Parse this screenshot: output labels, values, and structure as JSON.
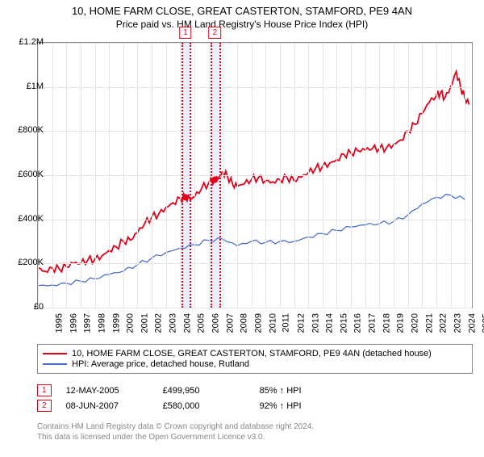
{
  "title": {
    "line1": "10, HOME FARM CLOSE, GREAT CASTERTON, STAMFORD, PE9 4AN",
    "line2": "Price paid vs. HM Land Registry's House Price Index (HPI)"
  },
  "chart": {
    "type": "line",
    "background_color": "#ffffff",
    "grid_color": "#e5e5e5",
    "border_color": "#888888",
    "y": {
      "min": 0,
      "max": 1200000,
      "ticks": [
        0,
        200000,
        400000,
        600000,
        800000,
        1000000,
        1200000
      ],
      "labels": [
        "£0",
        "£200K",
        "£400K",
        "£600K",
        "£800K",
        "£1M",
        "£1.2M"
      ]
    },
    "x": {
      "min": 1995,
      "max": 2025.5,
      "ticks": [
        1995,
        1996,
        1997,
        1998,
        1999,
        2000,
        2001,
        2002,
        2003,
        2004,
        2005,
        2006,
        2007,
        2008,
        2009,
        2010,
        2011,
        2012,
        2013,
        2014,
        2015,
        2016,
        2017,
        2018,
        2019,
        2020,
        2021,
        2022,
        2023,
        2024,
        2025
      ],
      "labels": [
        "1995",
        "1996",
        "1997",
        "1998",
        "1999",
        "2000",
        "2001",
        "2002",
        "2003",
        "2004",
        "2005",
        "2006",
        "2007",
        "2008",
        "2009",
        "2010",
        "2011",
        "2012",
        "2013",
        "2014",
        "2015",
        "2016",
        "2017",
        "2018",
        "2019",
        "2020",
        "2021",
        "2022",
        "2023",
        "2024",
        "2025"
      ]
    },
    "markers": [
      {
        "label": "1",
        "x": 2005.37,
        "y": 499950,
        "band_width_years": 0.6
      },
      {
        "label": "2",
        "x": 2007.44,
        "y": 580000,
        "band_width_years": 0.6
      }
    ],
    "marker_color": "#e2001a",
    "marker_band_color": "#e8effa",
    "series": [
      {
        "name": "10, HOME FARM CLOSE, GREAT CASTERTON, STAMFORD, PE9 4AN (detached house)",
        "color": "#e2001a",
        "line_width": 1.8,
        "data": [
          [
            1995,
            180000
          ],
          [
            1995.5,
            165000
          ],
          [
            1996,
            180000
          ],
          [
            1996.5,
            175000
          ],
          [
            1997,
            185000
          ],
          [
            1997.5,
            200000
          ],
          [
            1998,
            200000
          ],
          [
            1998.5,
            215000
          ],
          [
            1999,
            220000
          ],
          [
            1999.5,
            235000
          ],
          [
            2000,
            260000
          ],
          [
            2000.5,
            275000
          ],
          [
            2001,
            300000
          ],
          [
            2001.5,
            305000
          ],
          [
            2002,
            340000
          ],
          [
            2002.5,
            380000
          ],
          [
            2003,
            410000
          ],
          [
            2003.5,
            425000
          ],
          [
            2004,
            455000
          ],
          [
            2004.5,
            475000
          ],
          [
            2005,
            495000
          ],
          [
            2005.37,
            499950
          ],
          [
            2005.7,
            490000
          ],
          [
            2006,
            500000
          ],
          [
            2006.5,
            540000
          ],
          [
            2007,
            565000
          ],
          [
            2007.44,
            580000
          ],
          [
            2007.8,
            600000
          ],
          [
            2008,
            615000
          ],
          [
            2008.3,
            600000
          ],
          [
            2008.7,
            555000
          ],
          [
            2009,
            550000
          ],
          [
            2009.5,
            560000
          ],
          [
            2010,
            580000
          ],
          [
            2010.5,
            590000
          ],
          [
            2011,
            575000
          ],
          [
            2011.5,
            570000
          ],
          [
            2012,
            580000
          ],
          [
            2012.5,
            590000
          ],
          [
            2013,
            575000
          ],
          [
            2013.5,
            590000
          ],
          [
            2014,
            610000
          ],
          [
            2014.5,
            630000
          ],
          [
            2015,
            640000
          ],
          [
            2015.5,
            655000
          ],
          [
            2016,
            670000
          ],
          [
            2016.5,
            695000
          ],
          [
            2017,
            700000
          ],
          [
            2017.5,
            710000
          ],
          [
            2018,
            715000
          ],
          [
            2018.5,
            720000
          ],
          [
            2019,
            720000
          ],
          [
            2019.5,
            725000
          ],
          [
            2020,
            740000
          ],
          [
            2020.5,
            760000
          ],
          [
            2021,
            800000
          ],
          [
            2021.5,
            830000
          ],
          [
            2022,
            880000
          ],
          [
            2022.5,
            930000
          ],
          [
            2023,
            960000
          ],
          [
            2023.3,
            975000
          ],
          [
            2023.6,
            950000
          ],
          [
            2024,
            1000000
          ],
          [
            2024.4,
            1070000
          ],
          [
            2024.7,
            1000000
          ],
          [
            2025,
            950000
          ],
          [
            2025.3,
            920000
          ]
        ]
      },
      {
        "name": "HPI: Average price, detached house, Rutland",
        "color": "#4169c8",
        "line_width": 1.2,
        "data": [
          [
            1995,
            100000
          ],
          [
            1996,
            102000
          ],
          [
            1997,
            110000
          ],
          [
            1998,
            120000
          ],
          [
            1999,
            130000
          ],
          [
            2000,
            150000
          ],
          [
            2001,
            165000
          ],
          [
            2002,
            195000
          ],
          [
            2003,
            225000
          ],
          [
            2004,
            250000
          ],
          [
            2005,
            270000
          ],
          [
            2006,
            285000
          ],
          [
            2007,
            305000
          ],
          [
            2008,
            310000
          ],
          [
            2009,
            280000
          ],
          [
            2010,
            300000
          ],
          [
            2011,
            295000
          ],
          [
            2012,
            300000
          ],
          [
            2013,
            300000
          ],
          [
            2014,
            320000
          ],
          [
            2015,
            335000
          ],
          [
            2016,
            350000
          ],
          [
            2017,
            365000
          ],
          [
            2018,
            375000
          ],
          [
            2019,
            380000
          ],
          [
            2020,
            390000
          ],
          [
            2021,
            420000
          ],
          [
            2022,
            470000
          ],
          [
            2023,
            500000
          ],
          [
            2024,
            510000
          ],
          [
            2025,
            490000
          ]
        ]
      }
    ]
  },
  "legend": {
    "series1": "10, HOME FARM CLOSE, GREAT CASTERTON, STAMFORD, PE9 4AN (detached house)",
    "series2": "HPI: Average price, detached house, Rutland"
  },
  "data_rows": [
    {
      "num": "1",
      "date": "12-MAY-2005",
      "price": "£499,950",
      "pct": "85% ↑ HPI"
    },
    {
      "num": "2",
      "date": "08-JUN-2007",
      "price": "£580,000",
      "pct": "92% ↑ HPI"
    }
  ],
  "footer": {
    "line1": "Contains HM Land Registry data © Crown copyright and database right 2024.",
    "line2": "This data is licensed under the Open Government Licence v3.0."
  }
}
